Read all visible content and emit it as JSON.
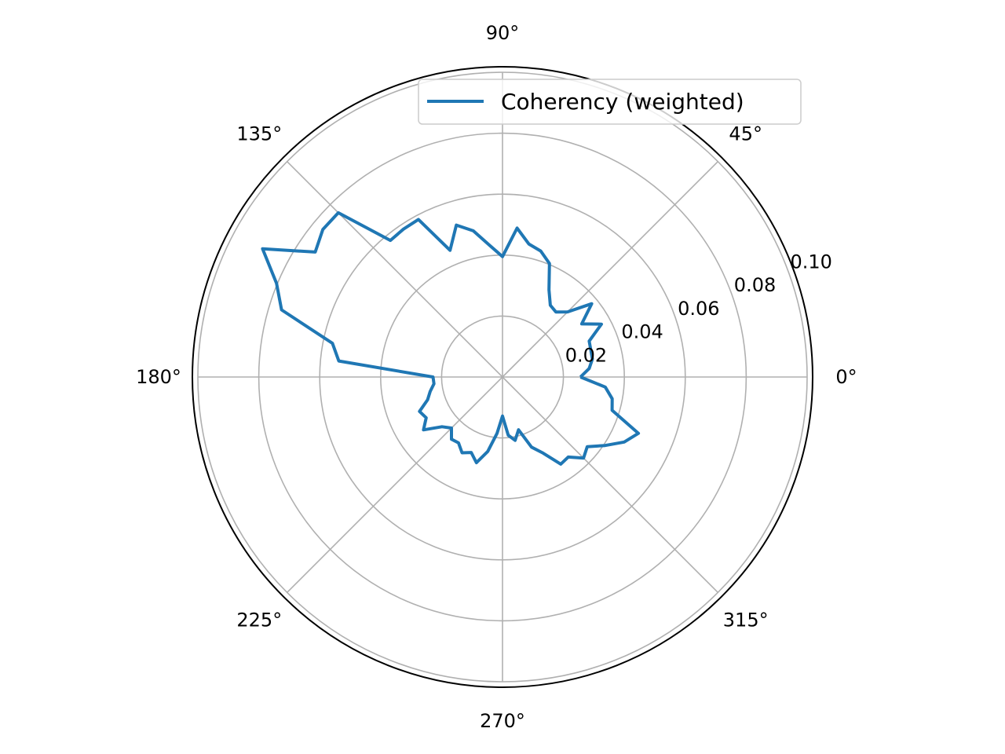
{
  "chart_data": {
    "type": "line",
    "subtype": "polar",
    "title": "",
    "rlim": [
      0,
      0.1
    ],
    "r_ticks": [
      "0.02",
      "0.04",
      "0.06",
      "0.08",
      "0.10"
    ],
    "theta_ticks": [
      "0°",
      "45°",
      "90°",
      "135°",
      "180°",
      "225°",
      "270°",
      "315°"
    ],
    "grid": true,
    "legend": {
      "placement": "top-right",
      "entries": [
        "Coherency (weighted)"
      ]
    },
    "series": [
      {
        "name": "Coherency (weighted)",
        "color": "#1f77b4",
        "theta_deg": [
          0,
          5.6,
          11.3,
          16.9,
          22.5,
          28.1,
          33.8,
          39.4,
          45,
          50.6,
          56.3,
          61.9,
          67.5,
          73.1,
          78.8,
          84.4,
          90,
          95.6,
          101.3,
          106.9,
          112.5,
          118.1,
          123.8,
          129.4,
          135,
          140.6,
          146.3,
          151.9,
          157.5,
          163.1,
          168.8,
          174.4,
          180,
          185.6,
          191.3,
          196.9,
          202.5,
          208.1,
          213.8,
          219.4,
          225,
          230.6,
          236.3,
          241.9,
          247.5,
          253.1,
          258.8,
          264.4,
          270,
          275.6,
          281.3,
          286.9,
          292.5,
          298.1,
          303.8,
          309.4,
          315,
          320.6,
          326.3,
          331.9,
          337.5,
          343.1,
          348.8,
          354.4
        ],
        "r": [
          0.0256,
          0.0286,
          0.0301,
          0.0303,
          0.0308,
          0.0368,
          0.0313,
          0.0379,
          0.0302,
          0.0276,
          0.0283,
          0.0324,
          0.0403,
          0.0432,
          0.0445,
          0.0491,
          0.0395,
          0.0434,
          0.0489,
          0.0521,
          0.045,
          0.0586,
          0.0584,
          0.058,
          0.0762,
          0.0763,
          0.0739,
          0.0893,
          0.0803,
          0.0758,
          0.0569,
          0.054,
          0.0228,
          0.0226,
          0.0242,
          0.0257,
          0.0295,
          0.0284,
          0.0312,
          0.0257,
          0.0237,
          0.0264,
          0.026,
          0.0282,
          0.0268,
          0.0294,
          0.0249,
          0.0186,
          0.0128,
          0.0192,
          0.0212,
          0.0181,
          0.0249,
          0.0283,
          0.0344,
          0.034,
          0.0376,
          0.036,
          0.0405,
          0.0453,
          0.0483,
          0.0376,
          0.0367,
          0.0339
        ]
      }
    ]
  }
}
